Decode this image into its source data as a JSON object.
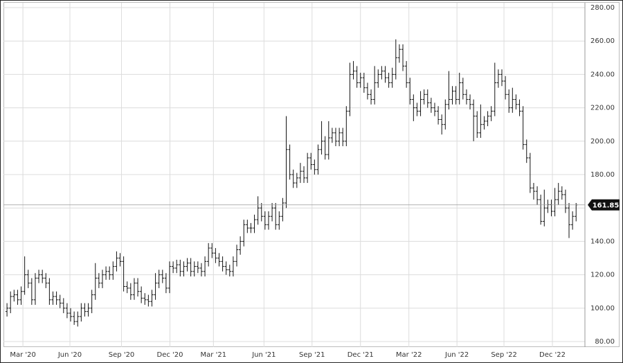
{
  "chart_data": {
    "type": "ohlc",
    "color": "#111111",
    "grid": true,
    "xlim": [
      -1,
      163.5
    ],
    "ylim": [
      76.7,
      282.9
    ],
    "xticks": [
      {
        "value": 4.5,
        "label": "Mar '20"
      },
      {
        "value": 17.8,
        "label": "Jun '20"
      },
      {
        "value": 32.4,
        "label": "Sep '20"
      },
      {
        "value": 46.1,
        "label": "Dec '20"
      },
      {
        "value": 58.4,
        "label": "Mar '21"
      },
      {
        "value": 72.7,
        "label": "Jun '21"
      },
      {
        "value": 86.3,
        "label": "Sep '21"
      },
      {
        "value": 100,
        "label": "Dec '21"
      },
      {
        "value": 113.7,
        "label": "Mar '22"
      },
      {
        "value": 127.3,
        "label": "Jun '22"
      },
      {
        "value": 140.6,
        "label": "Sep '22"
      },
      {
        "value": 154.3,
        "label": "Dec '22"
      }
    ],
    "yticks": [
      {
        "value": 80,
        "label": "80.00"
      },
      {
        "value": 100,
        "label": "100.00"
      },
      {
        "value": 120,
        "label": "120.00"
      },
      {
        "value": 140,
        "label": "140.00"
      },
      {
        "value": 160,
        "label": "160.00"
      },
      {
        "value": 180,
        "label": "180.00"
      },
      {
        "value": 200,
        "label": "200.00"
      },
      {
        "value": 220,
        "label": "220.00"
      },
      {
        "value": 240,
        "label": "240.00"
      },
      {
        "value": 260,
        "label": "260.00"
      },
      {
        "value": 280,
        "label": "280.00"
      }
    ],
    "open": [
      98,
      100,
      107,
      108,
      105,
      110,
      120,
      115,
      105,
      118,
      120,
      118,
      115,
      105,
      107,
      105,
      103,
      100,
      97,
      95,
      92,
      95,
      100,
      98,
      100,
      108,
      118,
      115,
      120,
      122,
      120,
      125,
      130,
      128,
      113,
      112,
      108,
      115,
      110,
      106,
      105,
      104,
      108,
      115,
      120,
      118,
      112,
      125,
      124,
      126,
      122,
      125,
      127,
      122,
      125,
      124,
      122,
      128,
      136,
      133,
      130,
      128,
      125,
      123,
      122,
      128,
      135,
      140,
      150,
      148,
      148,
      153,
      160,
      155,
      150,
      155,
      160,
      150,
      155,
      163,
      195,
      180,
      175,
      178,
      182,
      178,
      190,
      186,
      183,
      195,
      200,
      192,
      202,
      205,
      200,
      205,
      200,
      218,
      240,
      242,
      235,
      238,
      232,
      228,
      225,
      235,
      240,
      242,
      238,
      235,
      240,
      250,
      255,
      245,
      235,
      225,
      220,
      218,
      225,
      228,
      223,
      220,
      218,
      213,
      210,
      222,
      225,
      230,
      225,
      235,
      228,
      225,
      222,
      215,
      205,
      210,
      212,
      215,
      218,
      235,
      240,
      236,
      228,
      220,
      225,
      222,
      218,
      198,
      190,
      172,
      170,
      165,
      152,
      160,
      162,
      158,
      165,
      170,
      168,
      160,
      150,
      155
    ],
    "high": [
      103,
      110,
      111,
      111,
      113,
      131,
      123,
      118,
      121,
      123,
      123,
      121,
      118,
      110,
      110,
      108,
      106,
      103,
      100,
      98,
      98,
      103,
      103,
      103,
      111,
      127,
      121,
      123,
      125,
      125,
      128,
      134,
      133,
      131,
      116,
      115,
      118,
      118,
      113,
      109,
      108,
      111,
      121,
      123,
      123,
      121,
      128,
      128,
      129,
      129,
      128,
      130,
      130,
      128,
      128,
      127,
      131,
      139,
      139,
      136,
      133,
      131,
      128,
      126,
      131,
      138,
      143,
      153,
      153,
      151,
      156,
      167,
      163,
      158,
      158,
      163,
      163,
      158,
      166,
      215,
      198,
      183,
      181,
      187,
      185,
      193,
      193,
      189,
      198,
      212,
      203,
      212,
      208,
      208,
      208,
      208,
      221,
      247,
      248,
      245,
      241,
      241,
      235,
      231,
      245,
      243,
      245,
      245,
      241,
      244,
      261,
      258,
      258,
      248,
      238,
      228,
      223,
      230,
      231,
      231,
      226,
      223,
      221,
      216,
      225,
      242,
      233,
      233,
      241,
      238,
      231,
      228,
      225,
      218,
      222,
      215,
      218,
      221,
      247,
      243,
      243,
      239,
      231,
      232,
      228,
      225,
      221,
      201,
      193,
      175,
      173,
      168,
      171,
      165,
      165,
      172,
      175,
      173,
      171,
      163,
      158,
      163
    ],
    "low": [
      95,
      97,
      104,
      102,
      102,
      108,
      112,
      102,
      102,
      115,
      115,
      112,
      102,
      102,
      102,
      100,
      97,
      94,
      92,
      90,
      89,
      92,
      95,
      95,
      97,
      105,
      112,
      112,
      117,
      117,
      117,
      122,
      125,
      110,
      109,
      105,
      105,
      107,
      103,
      102,
      101,
      101,
      105,
      112,
      115,
      109,
      109,
      121,
      121,
      119,
      119,
      122,
      119,
      119,
      121,
      119,
      119,
      125,
      130,
      127,
      125,
      122,
      120,
      119,
      119,
      125,
      132,
      137,
      145,
      145,
      145,
      150,
      152,
      147,
      147,
      152,
      147,
      147,
      152,
      160,
      177,
      172,
      172,
      175,
      175,
      175,
      183,
      180,
      180,
      192,
      189,
      189,
      199,
      197,
      197,
      197,
      197,
      215,
      237,
      232,
      232,
      229,
      225,
      222,
      222,
      232,
      237,
      235,
      232,
      232,
      237,
      247,
      242,
      232,
      222,
      212,
      215,
      215,
      222,
      220,
      217,
      215,
      210,
      204,
      207,
      219,
      222,
      222,
      222,
      225,
      222,
      219,
      200,
      202,
      202,
      207,
      209,
      212,
      215,
      232,
      233,
      225,
      217,
      217,
      219,
      215,
      195,
      187,
      169,
      165,
      162,
      150,
      149,
      157,
      155,
      155,
      162,
      165,
      157,
      142,
      147,
      152
    ],
    "close": [
      100,
      107,
      108,
      105,
      110,
      120,
      115,
      105,
      118,
      120,
      118,
      115,
      105,
      107,
      105,
      103,
      100,
      97,
      95,
      92,
      95,
      100,
      98,
      100,
      108,
      118,
      115,
      120,
      122,
      120,
      125,
      130,
      128,
      113,
      112,
      108,
      115,
      110,
      106,
      105,
      104,
      108,
      115,
      120,
      118,
      112,
      125,
      124,
      126,
      122,
      125,
      127,
      122,
      125,
      124,
      122,
      128,
      136,
      133,
      130,
      128,
      125,
      123,
      122,
      128,
      135,
      140,
      150,
      148,
      148,
      153,
      160,
      155,
      150,
      155,
      160,
      150,
      155,
      163,
      195,
      180,
      175,
      178,
      182,
      178,
      190,
      186,
      183,
      195,
      200,
      192,
      202,
      205,
      200,
      205,
      200,
      218,
      240,
      242,
      235,
      238,
      232,
      228,
      225,
      235,
      240,
      242,
      238,
      235,
      240,
      250,
      255,
      245,
      235,
      225,
      220,
      218,
      225,
      228,
      223,
      220,
      218,
      213,
      210,
      222,
      225,
      230,
      225,
      235,
      228,
      225,
      222,
      215,
      205,
      210,
      212,
      215,
      218,
      235,
      240,
      236,
      228,
      220,
      225,
      222,
      218,
      198,
      190,
      172,
      170,
      165,
      152,
      160,
      162,
      158,
      165,
      170,
      168,
      160,
      150,
      155,
      161.85
    ]
  }
}
